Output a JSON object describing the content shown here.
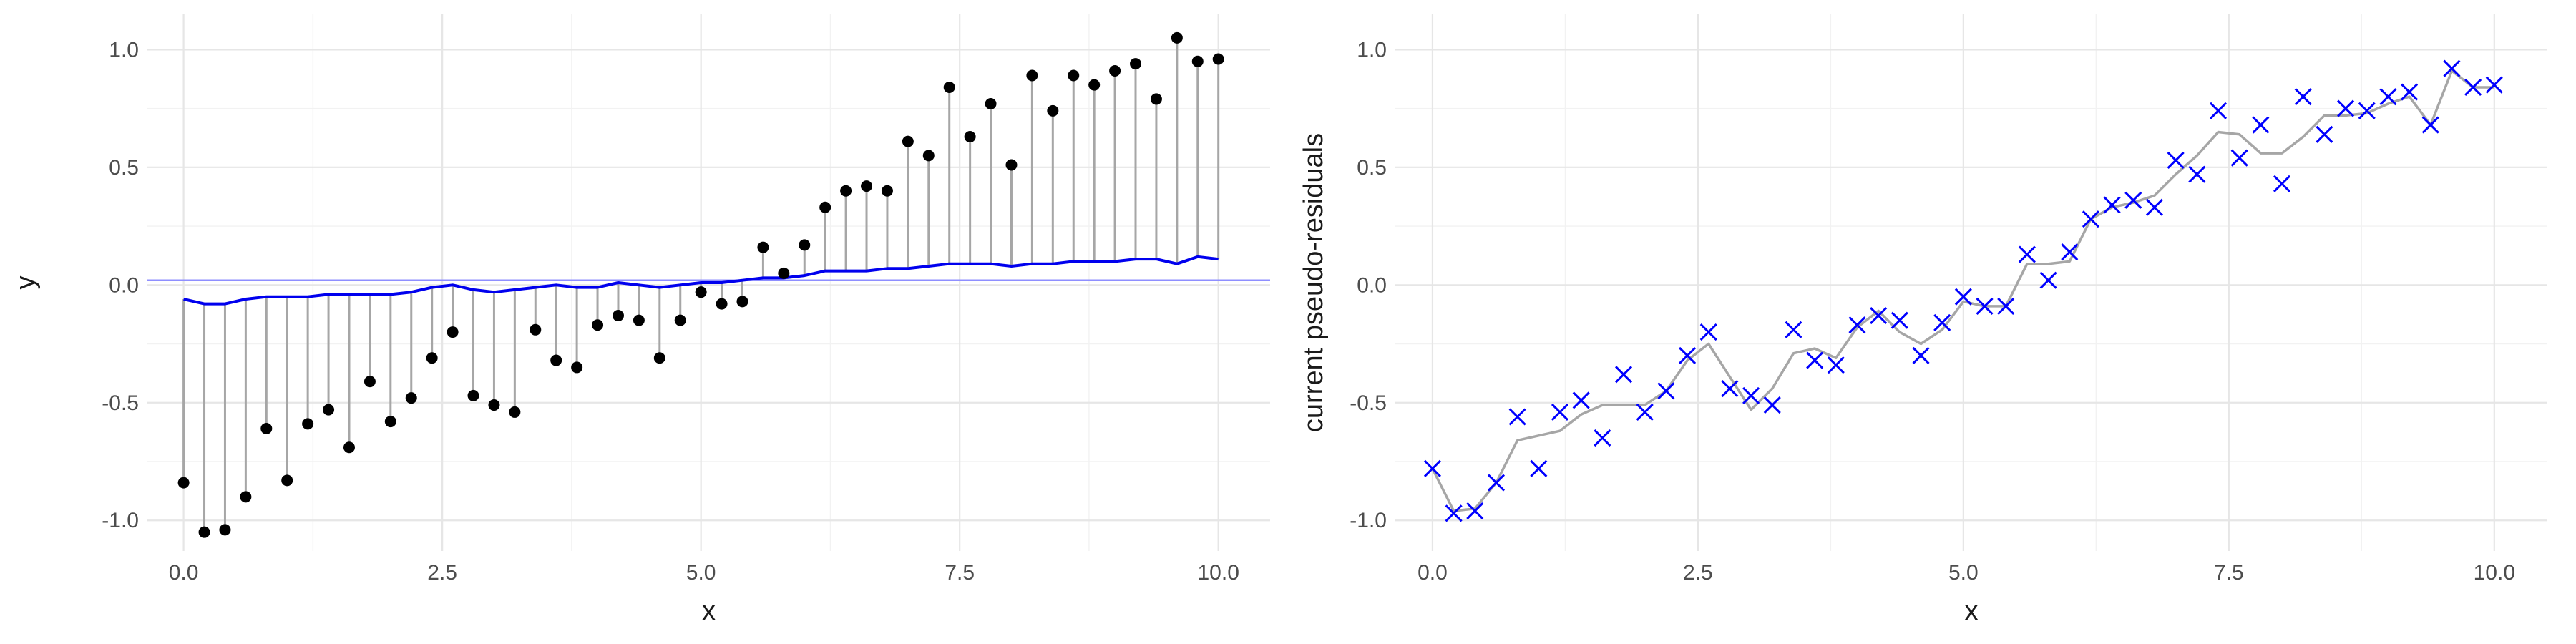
{
  "chart_data": [
    {
      "type": "scatter",
      "description_role": "residual stems from fitted curve to observed points",
      "xlabel": "x",
      "ylabel": "y",
      "xlim": [
        -0.35,
        10.5
      ],
      "ylim": [
        -1.13,
        1.15
      ],
      "xticks": [
        0.0,
        2.5,
        5.0,
        7.5,
        10.0
      ],
      "xtick_labels": [
        "0.0",
        "2.5",
        "5.0",
        "7.5",
        "10.0"
      ],
      "yticks": [
        -1.0,
        -0.5,
        0.0,
        0.5,
        1.0
      ],
      "ytick_labels": [
        "-1.0",
        "-0.5",
        "0.0",
        "0.5",
        "1.0"
      ],
      "grid": true,
      "reference_line_y": 0.02,
      "colors": {
        "points": "#000000",
        "stems": "#a6a6a6",
        "fit": "#0000ee",
        "reference": "#8f8fff"
      },
      "x": [
        0.0,
        0.2,
        0.4,
        0.6,
        0.8,
        1.0,
        1.2,
        1.4,
        1.6,
        1.8,
        2.0,
        2.2,
        2.4,
        2.6,
        2.8,
        3.0,
        3.2,
        3.4,
        3.6,
        3.8,
        4.0,
        4.2,
        4.4,
        4.6,
        4.8,
        5.0,
        5.2,
        5.4,
        5.6,
        5.8,
        6.0,
        6.2,
        6.4,
        6.6,
        6.8,
        7.0,
        7.2,
        7.4,
        7.6,
        7.8,
        8.0,
        8.2,
        8.4,
        8.6,
        8.8,
        9.0,
        9.2,
        9.4,
        9.6,
        9.8,
        10.0
      ],
      "series": [
        {
          "role": "observed",
          "values": [
            -0.84,
            -1.05,
            -1.04,
            -0.9,
            -0.61,
            -0.83,
            -0.59,
            -0.53,
            -0.69,
            -0.41,
            -0.58,
            -0.48,
            -0.31,
            -0.2,
            -0.47,
            -0.51,
            -0.54,
            -0.19,
            -0.32,
            -0.35,
            -0.17,
            -0.13,
            -0.15,
            -0.31,
            -0.15,
            -0.03,
            -0.08,
            -0.07,
            0.16,
            0.05,
            0.17,
            0.33,
            0.4,
            0.42,
            0.4,
            0.61,
            0.55,
            0.84,
            0.63,
            0.77,
            0.51,
            0.89,
            0.74,
            0.89,
            0.85,
            0.91,
            0.94,
            0.79,
            1.05,
            0.95,
            0.96
          ]
        },
        {
          "role": "fitted",
          "values": [
            -0.06,
            -0.08,
            -0.08,
            -0.06,
            -0.05,
            -0.05,
            -0.05,
            -0.04,
            -0.04,
            -0.04,
            -0.04,
            -0.03,
            -0.01,
            0.0,
            -0.02,
            -0.03,
            -0.02,
            -0.01,
            0.0,
            -0.01,
            -0.01,
            0.01,
            0.0,
            -0.01,
            0.0,
            0.01,
            0.01,
            0.02,
            0.03,
            0.03,
            0.04,
            0.06,
            0.06,
            0.06,
            0.07,
            0.07,
            0.08,
            0.09,
            0.09,
            0.09,
            0.08,
            0.09,
            0.09,
            0.1,
            0.1,
            0.1,
            0.11,
            0.11,
            0.09,
            0.12,
            0.11
          ]
        }
      ]
    },
    {
      "type": "scatter",
      "xlabel": "x",
      "ylabel": "current pseudo-residuals",
      "xlim": [
        -0.35,
        10.5
      ],
      "ylim": [
        -1.13,
        1.15
      ],
      "xticks": [
        0.0,
        2.5,
        5.0,
        7.5,
        10.0
      ],
      "xtick_labels": [
        "0.0",
        "2.5",
        "5.0",
        "7.5",
        "10.0"
      ],
      "yticks": [
        -1.0,
        -0.5,
        0.0,
        0.5,
        1.0
      ],
      "ytick_labels": [
        "-1.0",
        "-0.5",
        "0.0",
        "0.5",
        "1.0"
      ],
      "grid": true,
      "colors": {
        "points": "#0000ff",
        "fit": "#a6a6a6"
      },
      "x": [
        0.0,
        0.2,
        0.4,
        0.6,
        0.8,
        1.0,
        1.2,
        1.4,
        1.6,
        1.8,
        2.0,
        2.2,
        2.4,
        2.6,
        2.8,
        3.0,
        3.2,
        3.4,
        3.6,
        3.8,
        4.0,
        4.2,
        4.4,
        4.6,
        4.8,
        5.0,
        5.2,
        5.4,
        5.6,
        5.8,
        6.0,
        6.2,
        6.4,
        6.6,
        6.8,
        7.0,
        7.2,
        7.4,
        7.6,
        7.8,
        8.0,
        8.2,
        8.4,
        8.6,
        8.8,
        9.0,
        9.2,
        9.4,
        9.6,
        9.8,
        10.0
      ],
      "series": [
        {
          "role": "pseudo-residuals",
          "marker": "x",
          "values": [
            -0.78,
            -0.97,
            -0.96,
            -0.84,
            -0.56,
            -0.78,
            -0.54,
            -0.49,
            -0.65,
            -0.38,
            -0.54,
            -0.45,
            -0.3,
            -0.2,
            -0.44,
            -0.47,
            -0.51,
            -0.19,
            -0.32,
            -0.34,
            -0.17,
            -0.13,
            -0.15,
            -0.3,
            -0.16,
            -0.05,
            -0.09,
            -0.09,
            0.13,
            0.02,
            0.14,
            0.28,
            0.34,
            0.36,
            0.33,
            0.53,
            0.47,
            0.74,
            0.54,
            0.68,
            0.43,
            0.8,
            0.64,
            0.75,
            0.74,
            0.8,
            0.82,
            0.68,
            0.92,
            0.84,
            0.85
          ]
        },
        {
          "role": "fit",
          "values": [
            -0.78,
            -0.96,
            -0.95,
            -0.84,
            -0.66,
            -0.64,
            -0.62,
            -0.55,
            -0.51,
            -0.51,
            -0.51,
            -0.45,
            -0.32,
            -0.25,
            -0.39,
            -0.53,
            -0.44,
            -0.29,
            -0.27,
            -0.31,
            -0.18,
            -0.11,
            -0.2,
            -0.25,
            -0.19,
            -0.07,
            -0.09,
            -0.09,
            0.09,
            0.09,
            0.1,
            0.28,
            0.33,
            0.35,
            0.38,
            0.47,
            0.55,
            0.65,
            0.64,
            0.56,
            0.56,
            0.63,
            0.72,
            0.72,
            0.73,
            0.77,
            0.8,
            0.68,
            0.91,
            0.84,
            0.84
          ]
        }
      ]
    }
  ]
}
